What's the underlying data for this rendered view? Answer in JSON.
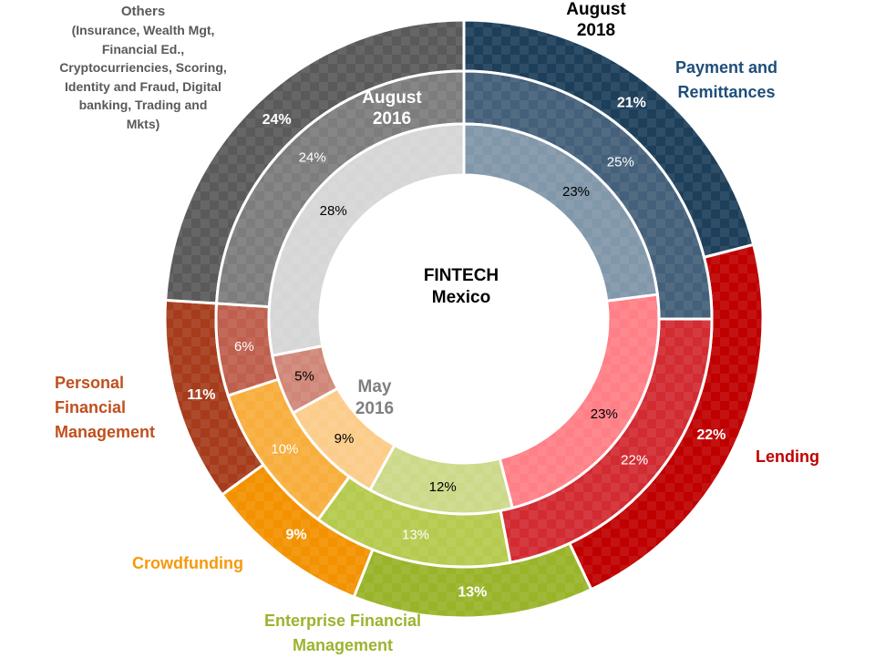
{
  "chart_data": {
    "type": "nested-donut",
    "title": "FINTECH Mexico",
    "categories": [
      "Payment and Remittances",
      "Lending",
      "Enterprise Financial Management",
      "Crowdfunding",
      "Personal Financial Management",
      "Others"
    ],
    "others_note": "(Insurance, Wealth Mgt, Financial Ed., Cryptocurriencies, Scoring, Identity and Fraud, Digital banking, Trading and Mkts)",
    "series": [
      {
        "name": "August 2018",
        "values": [
          21,
          22,
          13,
          9,
          11,
          24
        ]
      },
      {
        "name": "August 2016",
        "values": [
          25,
          22,
          13,
          10,
          6,
          24
        ]
      },
      {
        "name": "May 2016",
        "values": [
          23,
          23,
          12,
          9,
          5,
          28
        ]
      }
    ],
    "value_suffix": "%"
  },
  "center": {
    "line1": "FINTECH",
    "line2": "Mexico"
  },
  "ring_labels": {
    "outer": [
      "August",
      "2018"
    ],
    "middle": [
      "August",
      "2016"
    ],
    "inner": [
      "May",
      "2016"
    ]
  },
  "category_labels": {
    "payment": [
      "Payment and",
      "Remittances"
    ],
    "lending": [
      "Lending"
    ],
    "pfm": [
      "Personal",
      "Financial",
      "Management"
    ],
    "crowdfunding": [
      "Crowdfunding"
    ],
    "enterprise": [
      "Enterprise Financial",
      "Management"
    ],
    "others_title": "Others",
    "others_sub": [
      "(Insurance, Wealth Mgt,",
      "Financial Ed.,",
      "Cryptocurriencies, Scoring,",
      "Identity and Fraud, Digital",
      "banking, Trading and",
      "Mkts)"
    ]
  },
  "colors": {
    "outer": [
      "#1e3f5a",
      "#c00000",
      "#9ab42a",
      "#f39200",
      "#a63c1c",
      "#5a5a5a"
    ],
    "middle": [
      "#44607a",
      "#d22b32",
      "#b5ca4e",
      "#f8ae3c",
      "#bf5f4d",
      "#7d7d7d"
    ],
    "inner": [
      "#8197aa",
      "#ff7f87",
      "#ccd989",
      "#fccc8a",
      "#d08778",
      "#d6d6d6"
    ],
    "text_outer": "#ffffff",
    "text_middle": "#ffffff",
    "text_inner": "#000000",
    "ring_label_outer": "#000000",
    "ring_label_middle": "#ffffff",
    "ring_label_inner": "#7f7f7f"
  }
}
